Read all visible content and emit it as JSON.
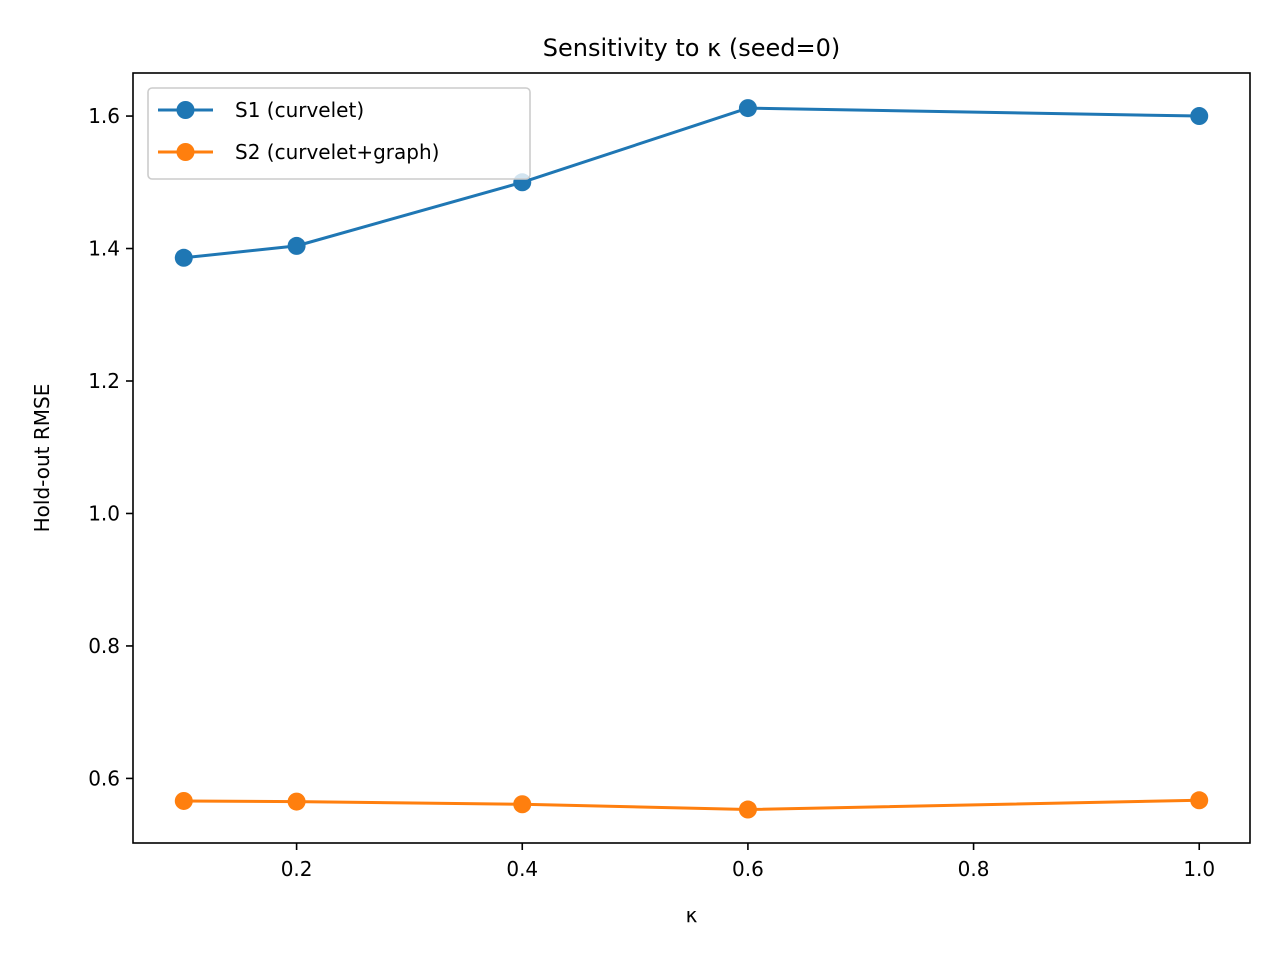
{
  "chart_data": {
    "type": "line",
    "title": "Sensitivity to κ (seed=0)",
    "xlabel": "κ",
    "ylabel": "Hold-out RMSE",
    "xlim": [
      0.055,
      1.045
    ],
    "ylim": [
      0.5025,
      1.665
    ],
    "x_ticks": [
      0.2,
      0.4,
      0.6,
      0.8,
      1.0
    ],
    "x_tick_labels": [
      "0.2",
      "0.4",
      "0.6",
      "0.8",
      "1.0"
    ],
    "y_ticks": [
      0.6,
      0.8,
      1.0,
      1.2,
      1.4,
      1.6
    ],
    "y_tick_labels": [
      "0.6",
      "0.8",
      "1.0",
      "1.2",
      "1.4",
      "1.6"
    ],
    "grid": false,
    "legend_position": "top-left",
    "x": [
      0.1,
      0.2,
      0.4,
      0.6,
      1.0
    ],
    "series": [
      {
        "name": "S1 (curvelet)",
        "color": "#1f77b4",
        "values": [
          1.386,
          1.404,
          1.5,
          1.612,
          1.6
        ]
      },
      {
        "name": "S2 (curvelet+graph)",
        "color": "#ff7f0e",
        "values": [
          0.566,
          0.565,
          0.561,
          0.553,
          0.567
        ]
      }
    ]
  }
}
